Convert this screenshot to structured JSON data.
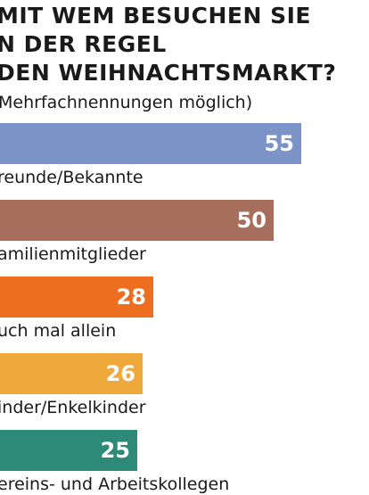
{
  "chart_data": {
    "type": "bar",
    "orientation": "horizontal",
    "title_lines": [
      "MIT WEM BESUCHEN SIE",
      "N DER REGEL",
      "DEN WEIHNACHTSMARKT?"
    ],
    "subtitle": "Mehrfachnennungen  möglich)",
    "categories": [
      "reunde/Bekannte",
      "amilienmitglieder",
      "uch mal allein",
      "inder/Enkelkinder",
      "ereins- und Arbeitskollegen"
    ],
    "values": [
      55,
      50,
      28,
      26,
      25
    ],
    "colors": [
      "#7b93c6",
      "#a86e5c",
      "#ec6e1e",
      "#eea93a",
      "#2d8a78"
    ],
    "xlim": [
      0,
      60
    ],
    "grid": false,
    "legend": "none"
  }
}
